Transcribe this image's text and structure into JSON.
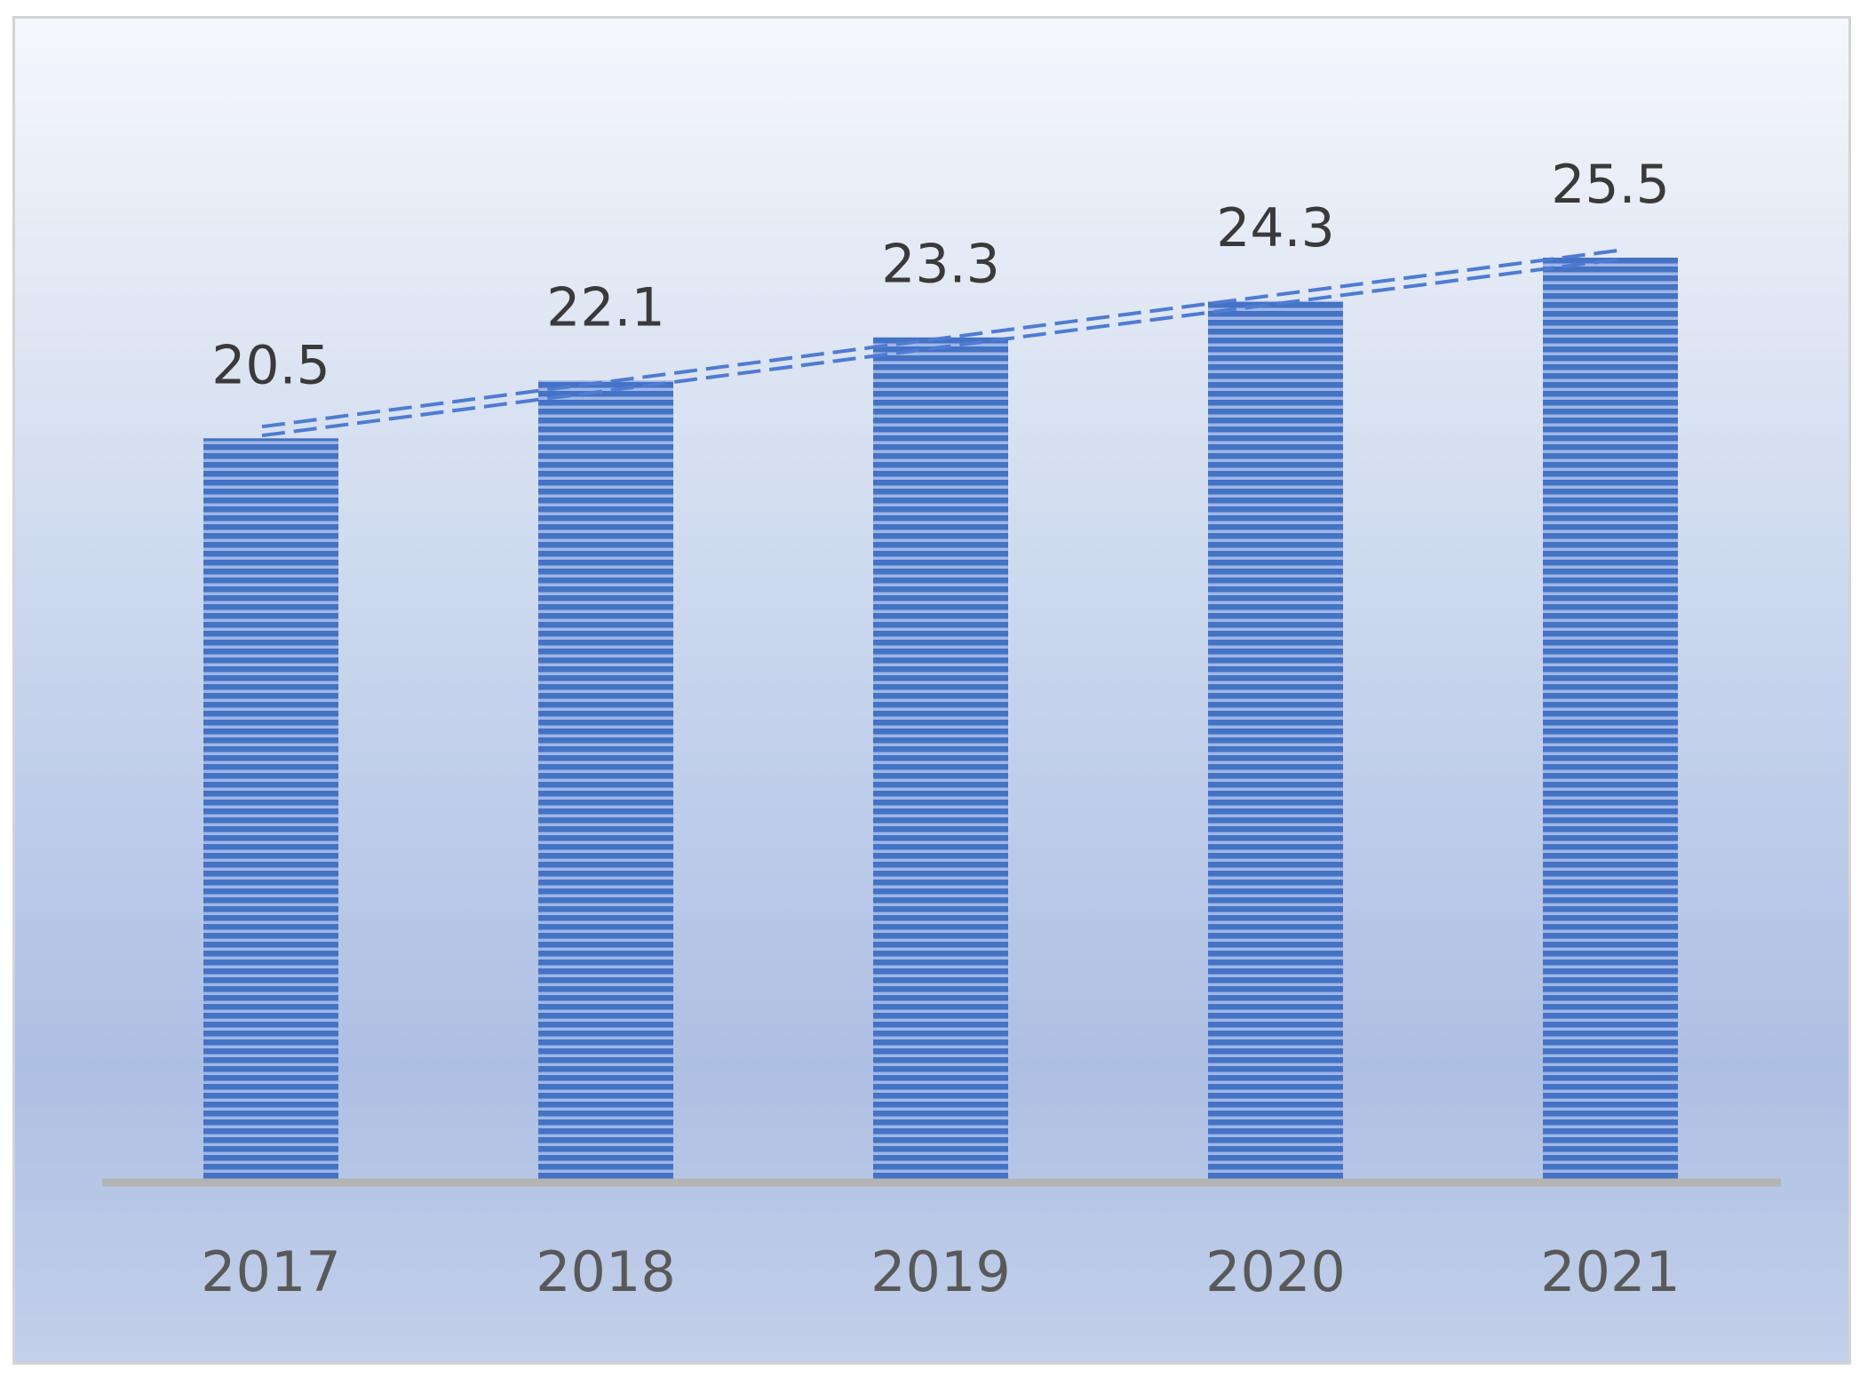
{
  "chart_data": {
    "type": "bar",
    "categories": [
      "2017",
      "2018",
      "2019",
      "2020",
      "2021"
    ],
    "values": [
      20.5,
      22.1,
      23.3,
      24.3,
      25.5
    ],
    "title": "",
    "xlabel": "",
    "ylabel": "",
    "ylim": [
      0,
      25.5
    ],
    "grid": false,
    "legend": "none",
    "trendline": {
      "type": "linear",
      "style": "double-dashed"
    },
    "colors": {
      "bar": "#4472c4",
      "bar_stripe": "#9fb6e6",
      "trendline": "#4f7bd4",
      "axis": "#b4b4b4",
      "data_label": "#3a3a3a",
      "tick_label": "#595959"
    }
  }
}
